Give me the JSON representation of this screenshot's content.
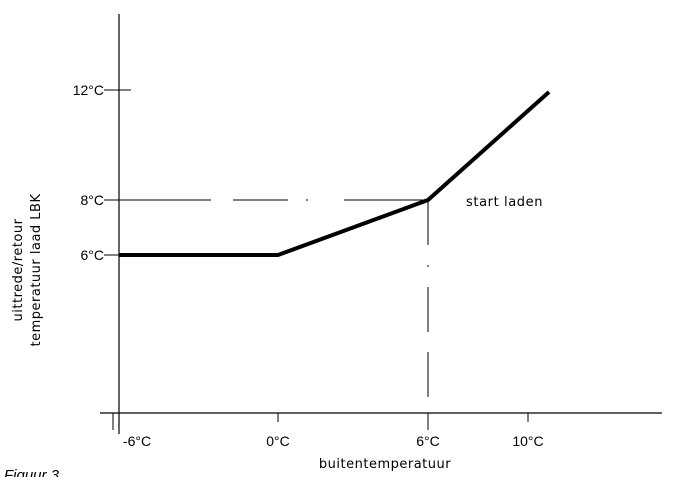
{
  "caption": "Figuur 3",
  "chart_data": {
    "type": "line",
    "xlabel": "buitentemperatuur",
    "ylabel_line1": "uittrede/retour",
    "ylabel_line2": "temperatuur laad LBK",
    "x_ticks": [
      {
        "value": -6,
        "label": "-6°C"
      },
      {
        "value": 0,
        "label": "0°C"
      },
      {
        "value": 6,
        "label": "6°C"
      },
      {
        "value": 10,
        "label": "10°C"
      }
    ],
    "y_ticks": [
      {
        "value": 6,
        "label": "6°C"
      },
      {
        "value": 8,
        "label": "8°C"
      },
      {
        "value": 12,
        "label": "12°C"
      }
    ],
    "series": [
      {
        "x": [
          -6,
          0,
          6,
          10
        ],
        "y": [
          6,
          6,
          8,
          12
        ],
        "color": "#000000"
      }
    ],
    "reference_lines": [
      {
        "axis": "y",
        "value": 8,
        "from": -6,
        "to": 6,
        "style": "dashed"
      },
      {
        "axis": "x",
        "value": 6,
        "from": 3,
        "to": 8,
        "style": "dashed"
      }
    ],
    "annotations": [
      {
        "text": "start laden",
        "x": 6,
        "y": 8,
        "color": "#000000"
      }
    ],
    "xlim": [
      -6.1,
      14
    ],
    "ylim": [
      3,
      15
    ],
    "grid": false,
    "legend": "none",
    "axis_color": "#000000"
  }
}
